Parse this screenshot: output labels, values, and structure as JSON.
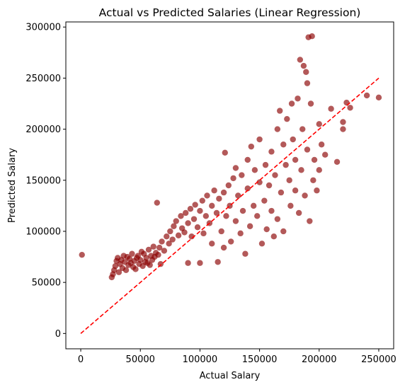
{
  "chart_data": {
    "type": "scatter",
    "title": "Actual vs Predicted Salaries (Linear Regression)",
    "xlabel": "Actual Salary",
    "ylabel": "Predicted Salary",
    "xlim": [
      -12500,
      262500
    ],
    "ylim": [
      -15000,
      305000
    ],
    "xticks": [
      0,
      50000,
      100000,
      150000,
      200000,
      250000
    ],
    "yticks": [
      0,
      50000,
      100000,
      150000,
      200000,
      250000,
      300000
    ],
    "xtick_labels": [
      "0",
      "50000",
      "100000",
      "150000",
      "200000",
      "250000"
    ],
    "ytick_labels": [
      "0",
      "50000",
      "100000",
      "150000",
      "200000",
      "250000",
      "300000"
    ],
    "grid": false,
    "point_color": "#8b0000",
    "point_alpha": 0.65,
    "reference_line": {
      "style": "dashed",
      "color": "#ff0000",
      "from": [
        0,
        0
      ],
      "to": [
        250000,
        250000
      ]
    },
    "series": [
      {
        "points": [
          [
            1000,
            77000
          ],
          [
            26000,
            55000
          ],
          [
            27000,
            58000
          ],
          [
            28000,
            62000
          ],
          [
            29000,
            66000
          ],
          [
            30000,
            71000
          ],
          [
            31000,
            74000
          ],
          [
            32000,
            60000
          ],
          [
            33000,
            68000
          ],
          [
            34000,
            72000
          ],
          [
            35000,
            64000
          ],
          [
            36000,
            76000
          ],
          [
            37000,
            70000
          ],
          [
            38000,
            62000
          ],
          [
            39000,
            75000
          ],
          [
            40000,
            67000
          ],
          [
            41000,
            73000
          ],
          [
            42000,
            69000
          ],
          [
            43000,
            78000
          ],
          [
            44000,
            65000
          ],
          [
            45000,
            71000
          ],
          [
            46000,
            63000
          ],
          [
            47000,
            74000
          ],
          [
            48000,
            76000
          ],
          [
            49000,
            68000
          ],
          [
            50000,
            72000
          ],
          [
            51000,
            80000
          ],
          [
            52000,
            66000
          ],
          [
            53000,
            78000
          ],
          [
            54000,
            70000
          ],
          [
            55000,
            74000
          ],
          [
            56000,
            69000
          ],
          [
            57000,
            82000
          ],
          [
            58000,
            67000
          ],
          [
            59000,
            76000
          ],
          [
            60000,
            72000
          ],
          [
            61000,
            85000
          ],
          [
            62000,
            75000
          ],
          [
            63000,
            79000
          ],
          [
            64000,
            128000
          ],
          [
            65000,
            77000
          ],
          [
            66000,
            84000
          ],
          [
            67000,
            68000
          ],
          [
            68000,
            90000
          ],
          [
            70000,
            81000
          ],
          [
            72000,
            95000
          ],
          [
            74000,
            88000
          ],
          [
            75000,
            100000
          ],
          [
            77000,
            92000
          ],
          [
            78000,
            105000
          ],
          [
            80000,
            110000
          ],
          [
            82000,
            96000
          ],
          [
            84000,
            115000
          ],
          [
            85000,
            103000
          ],
          [
            87000,
            99000
          ],
          [
            88000,
            118000
          ],
          [
            90000,
            69000
          ],
          [
            90000,
            108000
          ],
          [
            92000,
            122000
          ],
          [
            93000,
            95000
          ],
          [
            95000,
            112000
          ],
          [
            96000,
            126000
          ],
          [
            98000,
            104000
          ],
          [
            100000,
            120000
          ],
          [
            100000,
            69000
          ],
          [
            102000,
            130000
          ],
          [
            103000,
            98000
          ],
          [
            105000,
            115000
          ],
          [
            106000,
            135000
          ],
          [
            108000,
            108000
          ],
          [
            110000,
            125000
          ],
          [
            110000,
            88000
          ],
          [
            112000,
            140000
          ],
          [
            114000,
            118000
          ],
          [
            115000,
            70000
          ],
          [
            116000,
            132000
          ],
          [
            118000,
            100000
          ],
          [
            120000,
            138000
          ],
          [
            120000,
            84000
          ],
          [
            121000,
            177000
          ],
          [
            122000,
            115000
          ],
          [
            124000,
            145000
          ],
          [
            125000,
            125000
          ],
          [
            126000,
            90000
          ],
          [
            128000,
            152000
          ],
          [
            130000,
            110000
          ],
          [
            130000,
            162000
          ],
          [
            132000,
            135000
          ],
          [
            134000,
            98000
          ],
          [
            135000,
            155000
          ],
          [
            136000,
            120000
          ],
          [
            138000,
            78000
          ],
          [
            140000,
            170000
          ],
          [
            140000,
            142000
          ],
          [
            142000,
            105000
          ],
          [
            143000,
            183000
          ],
          [
            145000,
            125000
          ],
          [
            146000,
            160000
          ],
          [
            148000,
            115000
          ],
          [
            150000,
            148000
          ],
          [
            150000,
            190000
          ],
          [
            152000,
            88000
          ],
          [
            154000,
            130000
          ],
          [
            155000,
            165000
          ],
          [
            156000,
            102000
          ],
          [
            158000,
            145000
          ],
          [
            160000,
            178000
          ],
          [
            160000,
            120000
          ],
          [
            162000,
            95000
          ],
          [
            163000,
            155000
          ],
          [
            165000,
            200000
          ],
          [
            165000,
            112000
          ],
          [
            167000,
            218000
          ],
          [
            168000,
            138000
          ],
          [
            170000,
            185000
          ],
          [
            170000,
            100000
          ],
          [
            172000,
            165000
          ],
          [
            173000,
            210000
          ],
          [
            175000,
            150000
          ],
          [
            176000,
            125000
          ],
          [
            177000,
            225000
          ],
          [
            178000,
            190000
          ],
          [
            180000,
            140000
          ],
          [
            180000,
            170000
          ],
          [
            182000,
            230000
          ],
          [
            183000,
            118000
          ],
          [
            184000,
            268000
          ],
          [
            185000,
            160000
          ],
          [
            186000,
            200000
          ],
          [
            187000,
            262000
          ],
          [
            188000,
            135000
          ],
          [
            189000,
            256000
          ],
          [
            190000,
            180000
          ],
          [
            190000,
            245000
          ],
          [
            191000,
            290000
          ],
          [
            192000,
            110000
          ],
          [
            193000,
            225000
          ],
          [
            194000,
            291000
          ],
          [
            195000,
            150000
          ],
          [
            196000,
            170000
          ],
          [
            198000,
            140000
          ],
          [
            200000,
            205000
          ],
          [
            200000,
            160000
          ],
          [
            202000,
            185000
          ],
          [
            205000,
            175000
          ],
          [
            210000,
            220000
          ],
          [
            215000,
            168000
          ],
          [
            220000,
            207000
          ],
          [
            220000,
            200000
          ],
          [
            223000,
            226000
          ],
          [
            226000,
            221000
          ],
          [
            240000,
            233000
          ],
          [
            250000,
            231000
          ]
        ]
      }
    ]
  }
}
